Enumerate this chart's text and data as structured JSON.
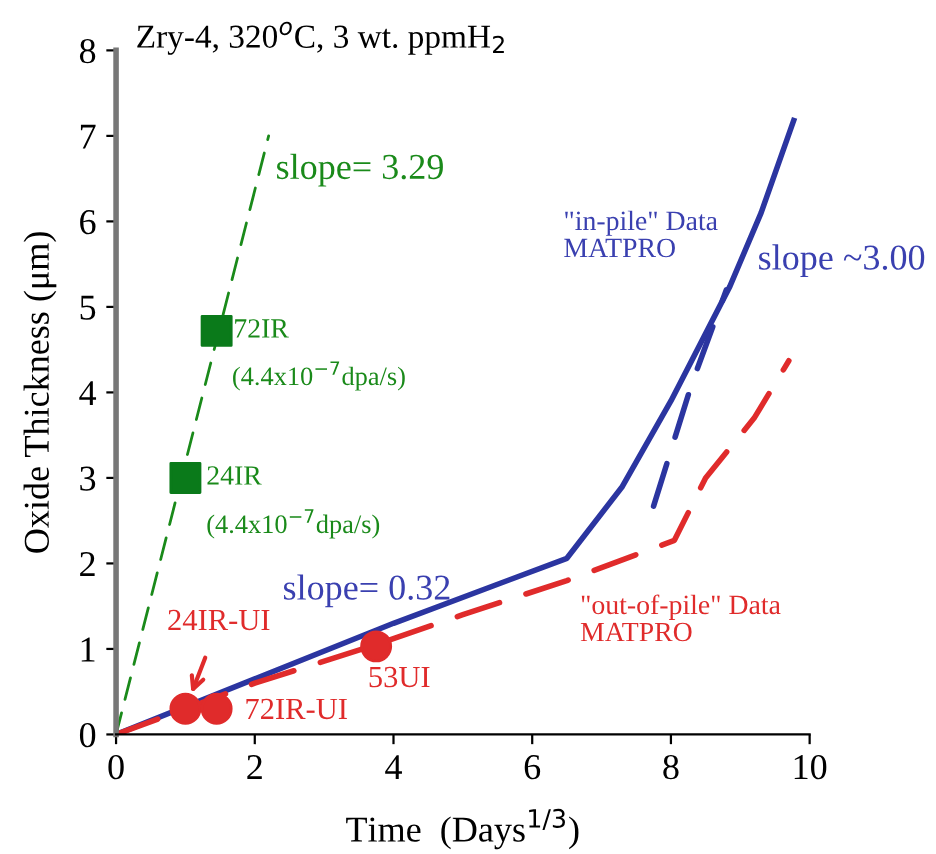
{
  "chart_data": {
    "type": "line",
    "title": "Zry-4, 320$^{o}$C, 3 wt. ppmH$_{2}$",
    "xlabel": "Time  (Days$^{1/3}$)",
    "ylabel": "Oxide Thickness (μm)",
    "xlim": [
      0,
      10
    ],
    "ylim": [
      0,
      8
    ],
    "xticks": [
      0,
      2,
      4,
      6,
      8,
      10
    ],
    "yticks": [
      0,
      1,
      2,
      3,
      4,
      5,
      6,
      7,
      8
    ],
    "grid": false,
    "legend": false,
    "series": [
      {
        "color": "#2b35a0",
        "line_style": "solid",
        "x": [
          0,
          2,
          4,
          6.5,
          7.3,
          8.0,
          8.85,
          9.3,
          9.77
        ],
        "values": [
          0,
          0.65,
          1.3,
          2.06,
          2.9,
          3.9,
          5.24,
          6.1,
          7.18
        ]
      },
      {
        "color": "#2b35a0",
        "line_style": "dashed",
        "x": [
          7.75,
          8.3,
          8.8
        ],
        "values": [
          2.67,
          4.1,
          5.2
        ]
      },
      {
        "color": "#e02b2b",
        "line_style": "dashed",
        "x": [
          0,
          1,
          2,
          3.75,
          5,
          6.5,
          8.05,
          8.5,
          9.2,
          9.7
        ],
        "values": [
          0,
          0.3,
          0.6,
          1.05,
          1.4,
          1.8,
          2.27,
          3.0,
          3.7,
          4.37
        ]
      },
      {
        "color": "#1a8a1a",
        "line_style": "dashed",
        "x": [
          0,
          2.2
        ],
        "values": [
          0,
          7.0
        ]
      },
      {
        "type": "scatter",
        "color": "#e02b2b",
        "marker": "circle",
        "x": [
          1.0,
          1.45,
          3.75
        ],
        "values": [
          0.3,
          0.3,
          1.03
        ]
      },
      {
        "type": "scatter",
        "color": "#0a7a1a",
        "marker": "square",
        "x": [
          1.0,
          1.45
        ],
        "values": [
          3.0,
          4.72
        ]
      }
    ],
    "annotations": [
      "slope= 3.29",
      {
        "text": "72IR",
        "x": 1.45,
        "y": 4.72
      },
      "(4.4x10$^{−7}$dpa/s)",
      {
        "text": "24IR",
        "x": 1.0,
        "y": 3.0
      },
      "(4.4x10$^{−7}$dpa/s)",
      "slope= 0.32",
      {
        "text": "24IR-UI",
        "x": 1.0,
        "y": 0.3
      },
      {
        "text": "72IR-UI",
        "x": 1.45,
        "y": 0.3
      },
      {
        "text": "53UI",
        "x": 3.75,
        "y": 1.03
      },
      "\"out-of-pile\" Data\nMATPRO",
      "\"in-pile\" Data\nMATPRO",
      "slope ~3.00"
    ]
  }
}
